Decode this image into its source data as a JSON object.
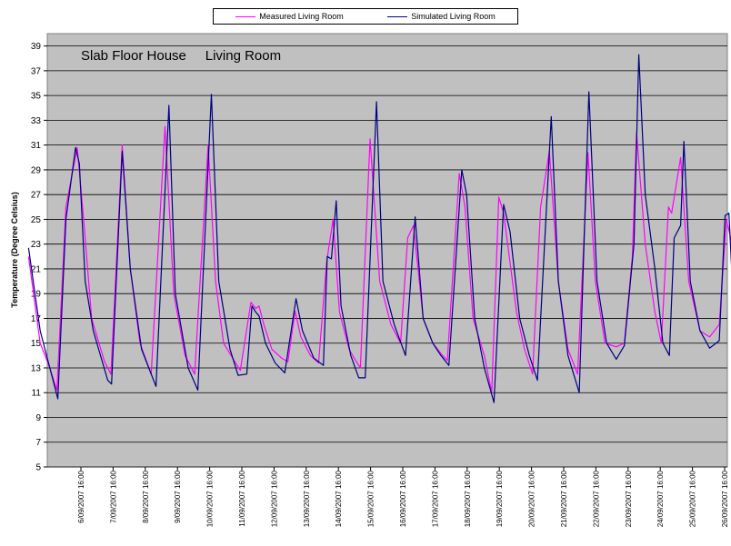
{
  "chart_data": {
    "type": "line",
    "annotation": "Slab Floor House     Living Room",
    "xlabel": "",
    "ylabel": "Temperature (Degree Celsius)",
    "ylim": [
      5,
      40
    ],
    "yticks": [
      5,
      7,
      9,
      11,
      13,
      15,
      17,
      19,
      21,
      23,
      25,
      27,
      29,
      31,
      33,
      35,
      37,
      39
    ],
    "x_tick_labels": [
      "6/09/2007 16:00",
      "7/09/2007 16:00",
      "8/09/2007 16:00",
      "9/09/2007 16:00",
      "10/09/2007 16:00",
      "11/09/2007 16:00",
      "12/09/2007 16:00",
      "13/09/2007 16:00",
      "14/09/2007 16:00",
      "15/09/2007 16:00",
      "16/09/2007 16:00",
      "17/09/2007 16:00",
      "18/09/2007 16:00",
      "19/09/2007 16:00",
      "20/09/2007 16:00",
      "21/09/2007 16:00",
      "22/09/2007 16:00",
      "23/09/2007 16:00",
      "24/09/2007 16:00",
      "25/09/2007 16:00",
      "26/09/2007 16:00"
    ],
    "grid": true,
    "legend_position": "top-center",
    "plot_background": "#c0c0c0",
    "x_unit": "days since 6/09/2007 00:00",
    "series": [
      {
        "name": "Measured Living Room",
        "color": "#ff00ff",
        "points": [
          [
            -0.96,
            22
          ],
          [
            -0.6,
            15
          ],
          [
            -0.3,
            13
          ],
          [
            -0.08,
            11.2
          ],
          [
            0.2,
            26
          ],
          [
            0.55,
            30.8
          ],
          [
            0.75,
            25
          ],
          [
            1.0,
            17
          ],
          [
            1.4,
            13.5
          ],
          [
            1.6,
            12.5
          ],
          [
            1.95,
            31
          ],
          [
            2.2,
            21
          ],
          [
            2.5,
            15
          ],
          [
            2.85,
            12.5
          ],
          [
            3.28,
            32.5
          ],
          [
            3.55,
            19
          ],
          [
            3.9,
            14
          ],
          [
            4.2,
            12.5
          ],
          [
            4.62,
            31
          ],
          [
            4.85,
            20
          ],
          [
            5.1,
            15
          ],
          [
            5.45,
            13.5
          ],
          [
            5.62,
            12.8
          ],
          [
            5.95,
            18.3
          ],
          [
            6.1,
            17.8
          ],
          [
            6.2,
            18
          ],
          [
            6.35,
            16.5
          ],
          [
            6.6,
            14.5
          ],
          [
            6.9,
            13.8
          ],
          [
            7.1,
            13.5
          ],
          [
            7.32,
            17.6
          ],
          [
            7.5,
            15.5
          ],
          [
            7.8,
            14
          ],
          [
            8.05,
            13.4
          ],
          [
            8.3,
            21.5
          ],
          [
            8.5,
            25
          ],
          [
            8.7,
            17.5
          ],
          [
            9.0,
            14.5
          ],
          [
            9.2,
            13.6
          ],
          [
            9.35,
            13
          ],
          [
            9.65,
            31.5
          ],
          [
            9.95,
            20
          ],
          [
            10.3,
            16.5
          ],
          [
            10.6,
            15
          ],
          [
            10.82,
            23.5
          ],
          [
            11.0,
            24.5
          ],
          [
            11.3,
            17
          ],
          [
            11.6,
            15
          ],
          [
            11.9,
            14
          ],
          [
            12.05,
            13.6
          ],
          [
            12.42,
            28.7
          ],
          [
            12.6,
            26
          ],
          [
            12.85,
            17
          ],
          [
            13.2,
            14
          ],
          [
            13.43,
            11
          ],
          [
            13.65,
            26.8
          ],
          [
            13.8,
            25.5
          ],
          [
            14.2,
            17.5
          ],
          [
            14.45,
            14.5
          ],
          [
            14.7,
            12.5
          ],
          [
            14.95,
            26
          ],
          [
            15.22,
            30.5
          ],
          [
            15.5,
            20
          ],
          [
            15.8,
            14.5
          ],
          [
            16.1,
            12.5
          ],
          [
            16.42,
            30.4
          ],
          [
            16.65,
            20
          ],
          [
            16.95,
            15
          ],
          [
            17.3,
            14.7
          ],
          [
            17.55,
            15
          ],
          [
            17.8,
            22
          ],
          [
            17.93,
            32
          ],
          [
            18.2,
            23
          ],
          [
            18.5,
            17.5
          ],
          [
            18.7,
            15
          ],
          [
            18.92,
            26
          ],
          [
            19.02,
            25.5
          ],
          [
            19.3,
            30
          ],
          [
            19.55,
            20
          ],
          [
            19.9,
            16
          ],
          [
            20.2,
            15.5
          ],
          [
            20.5,
            16.5
          ],
          [
            20.72,
            25
          ],
          [
            20.9,
            23
          ],
          [
            21.2,
            14.5
          ],
          [
            21.55,
            11.5
          ],
          [
            21.75,
            10.5
          ],
          [
            21.92,
            22.5
          ],
          [
            22.05,
            22
          ],
          [
            22.2,
            27.5
          ],
          [
            22.5,
            20
          ],
          [
            22.8,
            14
          ],
          [
            23.0,
            12
          ],
          [
            23.1,
            10.2
          ],
          [
            23.32,
            25.5
          ],
          [
            23.55,
            22
          ],
          [
            23.8,
            17
          ],
          [
            24.1,
            15
          ],
          [
            24.25,
            13.5
          ],
          [
            24.5,
            17.5
          ],
          [
            24.72,
            21.5
          ],
          [
            24.95,
            16
          ],
          [
            25.2,
            14.5
          ],
          [
            25.5,
            13
          ],
          [
            25.7,
            19
          ],
          [
            25.95,
            24.8
          ],
          [
            26.15,
            20
          ],
          [
            26.45,
            15.5
          ],
          [
            26.65,
            14
          ],
          [
            26.85,
            14
          ],
          [
            27.2,
            19.8
          ],
          [
            27.45,
            17
          ],
          [
            27.7,
            15.8
          ]
        ]
      },
      {
        "name": "Simulated Living Room",
        "color": "#000080",
        "points": [
          [
            -0.96,
            22.7
          ],
          [
            -0.6,
            16
          ],
          [
            -0.3,
            13
          ],
          [
            -0.05,
            10.5
          ],
          [
            0.2,
            25
          ],
          [
            0.5,
            30.8
          ],
          [
            0.62,
            29.5
          ],
          [
            0.8,
            20
          ],
          [
            1.05,
            16
          ],
          [
            1.5,
            12
          ],
          [
            1.62,
            11.7
          ],
          [
            1.95,
            30.5
          ],
          [
            2.2,
            21
          ],
          [
            2.55,
            14.5
          ],
          [
            3.0,
            11.5
          ],
          [
            3.4,
            34.2
          ],
          [
            3.6,
            19
          ],
          [
            4.0,
            13
          ],
          [
            4.3,
            11.2
          ],
          [
            4.72,
            35.1
          ],
          [
            4.95,
            20
          ],
          [
            5.3,
            14.5
          ],
          [
            5.55,
            12.4
          ],
          [
            5.82,
            12.5
          ],
          [
            5.98,
            18
          ],
          [
            6.1,
            17.5
          ],
          [
            6.2,
            17.2
          ],
          [
            6.4,
            15
          ],
          [
            6.7,
            13.4
          ],
          [
            7.0,
            12.6
          ],
          [
            7.35,
            18.6
          ],
          [
            7.55,
            16
          ],
          [
            7.9,
            13.8
          ],
          [
            8.2,
            13.2
          ],
          [
            8.32,
            22
          ],
          [
            8.45,
            21.8
          ],
          [
            8.6,
            26.5
          ],
          [
            8.75,
            18
          ],
          [
            9.05,
            14
          ],
          [
            9.3,
            12.2
          ],
          [
            9.5,
            12.2
          ],
          [
            9.85,
            34.5
          ],
          [
            10.05,
            20
          ],
          [
            10.4,
            16.5
          ],
          [
            10.75,
            14
          ],
          [
            11.05,
            25.2
          ],
          [
            11.3,
            17
          ],
          [
            11.6,
            15
          ],
          [
            11.85,
            14
          ],
          [
            12.1,
            13.2
          ],
          [
            12.5,
            29
          ],
          [
            12.65,
            27
          ],
          [
            12.9,
            17
          ],
          [
            13.2,
            13
          ],
          [
            13.5,
            10.2
          ],
          [
            13.8,
            26.2
          ],
          [
            14.0,
            24
          ],
          [
            14.3,
            17
          ],
          [
            14.6,
            14
          ],
          [
            14.85,
            12
          ],
          [
            15.28,
            33.3
          ],
          [
            15.5,
            20
          ],
          [
            15.8,
            14
          ],
          [
            16.15,
            11
          ],
          [
            16.45,
            35.3
          ],
          [
            16.7,
            20
          ],
          [
            17.0,
            15
          ],
          [
            17.3,
            13.7
          ],
          [
            17.55,
            14.8
          ],
          [
            17.85,
            23
          ],
          [
            18.0,
            38.3
          ],
          [
            18.2,
            27
          ],
          [
            18.5,
            21
          ],
          [
            18.75,
            15
          ],
          [
            18.95,
            14
          ],
          [
            19.1,
            23.5
          ],
          [
            19.3,
            24.5
          ],
          [
            19.4,
            31.3
          ],
          [
            19.6,
            20
          ],
          [
            19.9,
            16
          ],
          [
            20.2,
            14.6
          ],
          [
            20.5,
            15.2
          ],
          [
            20.68,
            25.3
          ],
          [
            20.8,
            25.5
          ],
          [
            21.0,
            15
          ],
          [
            21.3,
            12
          ],
          [
            21.7,
            11
          ],
          [
            21.95,
            17
          ],
          [
            22.18,
            31.8
          ],
          [
            22.4,
            20
          ],
          [
            22.7,
            13.5
          ],
          [
            22.95,
            11
          ],
          [
            23.08,
            9.6
          ],
          [
            23.2,
            13
          ],
          [
            23.45,
            28.8
          ],
          [
            23.7,
            19
          ],
          [
            24.05,
            15.5
          ],
          [
            24.3,
            12.8
          ],
          [
            24.5,
            16.5
          ],
          [
            24.68,
            24.3
          ],
          [
            24.82,
            21
          ],
          [
            24.95,
            17
          ],
          [
            25.2,
            14
          ],
          [
            25.5,
            12.5
          ],
          [
            25.68,
            16
          ],
          [
            26.0,
            28.5
          ],
          [
            26.2,
            20
          ],
          [
            26.5,
            14.5
          ],
          [
            26.9,
            12.9
          ],
          [
            27.2,
            18
          ],
          [
            27.35,
            21.5
          ],
          [
            27.5,
            18
          ],
          [
            27.8,
            16
          ],
          [
            27.98,
            15.5
          ]
        ]
      }
    ]
  }
}
